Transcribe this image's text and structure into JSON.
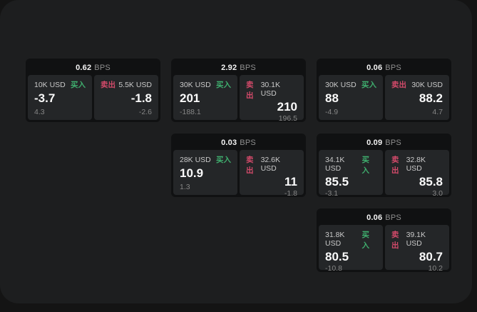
{
  "labels": {
    "buy": "买入",
    "sell": "卖出",
    "bps_unit": "BPS"
  },
  "colors": {
    "buy_green": "#3fae6e",
    "sell_red": "#d34a6a",
    "panel_bg": "#1d1e1f",
    "card_bg": "#101112",
    "tile_bg": "#242628",
    "outer_bg": "#141414"
  },
  "cards": [
    {
      "bps": "0.62",
      "buy": {
        "amount": "10K USD",
        "price": "-3.7",
        "change": "4.3"
      },
      "sell": {
        "amount": "5.5K USD",
        "price": "-1.8",
        "change": "-2.6"
      }
    },
    {
      "bps": "2.92",
      "buy": {
        "amount": "30K USD",
        "price": "201",
        "change": "-188.1"
      },
      "sell": {
        "amount": "30.1K USD",
        "price": "210",
        "change": "196.5"
      }
    },
    {
      "bps": "0.06",
      "buy": {
        "amount": "30K USD",
        "price": "88",
        "change": "-4.9"
      },
      "sell": {
        "amount": "30K USD",
        "price": "88.2",
        "change": "4.7"
      }
    },
    {
      "bps": "0.03",
      "buy": {
        "amount": "28K USD",
        "price": "10.9",
        "change": "1.3"
      },
      "sell": {
        "amount": "32.6K USD",
        "price": "11",
        "change": "-1.8"
      }
    },
    {
      "bps": "0.09",
      "buy": {
        "amount": "34.1K USD",
        "price": "85.5",
        "change": "-3.1"
      },
      "sell": {
        "amount": "32.8K USD",
        "price": "85.8",
        "change": "3.0"
      }
    },
    {
      "bps": "0.06",
      "buy": {
        "amount": "31.8K USD",
        "price": "80.5",
        "change": "-10.8"
      },
      "sell": {
        "amount": "39.1K USD",
        "price": "80.7",
        "change": "10.2"
      }
    }
  ]
}
